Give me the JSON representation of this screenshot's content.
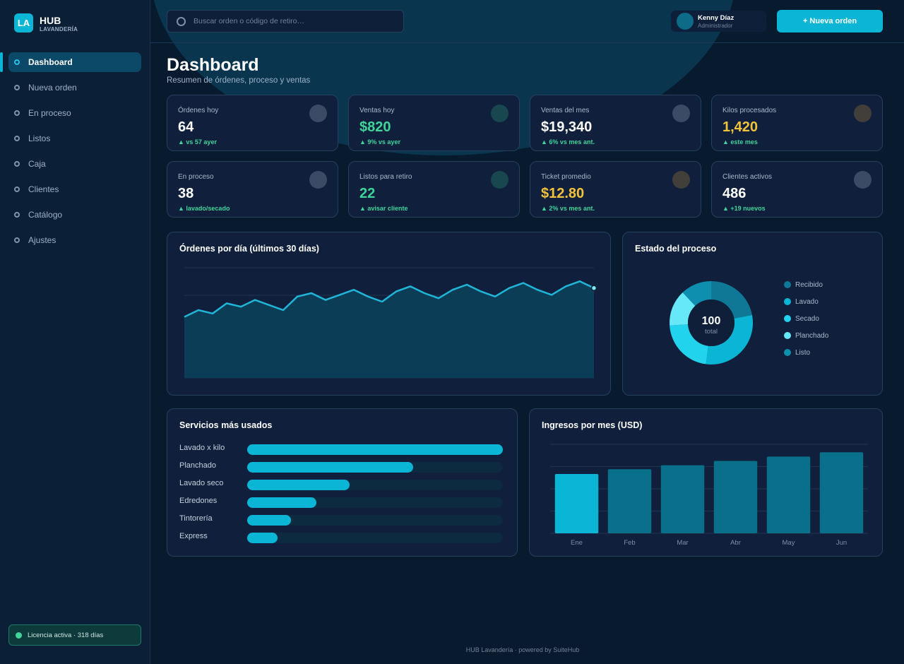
{
  "brand": {
    "logo": "LA",
    "name": "HUB",
    "sub": "LAVANDERÍA"
  },
  "nav": [
    {
      "label": "Dashboard",
      "active": true
    },
    {
      "label": "Nueva orden"
    },
    {
      "label": "En proceso"
    },
    {
      "label": "Listos"
    },
    {
      "label": "Caja"
    },
    {
      "label": "Clientes"
    },
    {
      "label": "Catálogo"
    },
    {
      "label": "Ajustes"
    }
  ],
  "license": "Licencia activa · 318 días",
  "search": {
    "placeholder": "Buscar orden o código de retiro…"
  },
  "user": {
    "name": "Kenny Díaz",
    "role": "Administrador"
  },
  "new_order_label": "+ Nueva orden",
  "page": {
    "title": "Dashboard",
    "subtitle": "Resumen de órdenes, proceso y ventas"
  },
  "kpis": [
    {
      "label": "Órdenes hoy",
      "value": "64",
      "trend": "▲ vs 57 ayer",
      "value_color": "white",
      "icon": "gray"
    },
    {
      "label": "Ventas hoy",
      "value": "$820",
      "trend": "▲ 9% vs ayer",
      "value_color": "green",
      "icon": "teal"
    },
    {
      "label": "Ventas del mes",
      "value": "$19,340",
      "trend": "▲ 6% vs mes ant.",
      "value_color": "white",
      "icon": "gray"
    },
    {
      "label": "Kilos procesados",
      "value": "1,420",
      "trend": "▲ este mes",
      "value_color": "yellow",
      "icon": "brown"
    },
    {
      "label": "En proceso",
      "value": "38",
      "trend": "▲ lavado/secado",
      "value_color": "white",
      "icon": "gray"
    },
    {
      "label": "Listos para retiro",
      "value": "22",
      "trend": "▲ avisar cliente",
      "value_color": "green",
      "icon": "teal"
    },
    {
      "label": "Ticket promedio",
      "value": "$12.80",
      "trend": "▲ 2% vs mes ant.",
      "value_color": "yellow",
      "icon": "brown"
    },
    {
      "label": "Clientes activos",
      "value": "486",
      "trend": "▲ +19 nuevos",
      "value_color": "white",
      "icon": "gray"
    }
  ],
  "chart_data": [
    {
      "type": "area",
      "title": "Órdenes por día (últimos 30 días)",
      "x": [
        1,
        2,
        3,
        4,
        5,
        6,
        7,
        8,
        9,
        10,
        11,
        12,
        13,
        14,
        15,
        16,
        17,
        18,
        19,
        20,
        21,
        22,
        23,
        24,
        25,
        26,
        27,
        28,
        29,
        30
      ],
      "values": [
        36,
        40,
        38,
        44,
        42,
        46,
        43,
        40,
        48,
        50,
        46,
        49,
        52,
        48,
        45,
        51,
        54,
        50,
        47,
        52,
        55,
        51,
        48,
        53,
        56,
        52,
        49,
        54,
        57,
        53
      ],
      "ylim": [
        0,
        65
      ],
      "grid": true,
      "color": "#1fb6d8"
    },
    {
      "type": "pie",
      "title": "Estado del proceso",
      "center_value": "100",
      "center_label": "total",
      "categories": [
        "Recibido",
        "Lavado",
        "Secado",
        "Planchado",
        "Listo"
      ],
      "values": [
        22,
        30,
        22,
        14,
        12
      ],
      "colors": [
        "#0f7896",
        "#0bb5d6",
        "#22d3ee",
        "#67e8f9",
        "#0e8fb0"
      ],
      "legend": "right"
    },
    {
      "type": "bar",
      "orientation": "horizontal",
      "title": "Servicios más usados",
      "categories": [
        "Lavado x kilo",
        "Planchado",
        "Lavado seco",
        "Edredones",
        "Tintorería",
        "Express"
      ],
      "values": [
        100,
        65,
        40,
        27,
        17,
        12
      ],
      "xlim": [
        0,
        100
      ]
    },
    {
      "type": "bar",
      "title": "Ingresos por mes (USD)",
      "categories": [
        "Ene",
        "Feb",
        "Mar",
        "Abr",
        "May",
        "Jun"
      ],
      "values": [
        15000,
        16200,
        17200,
        18300,
        19400,
        20500
      ],
      "ylim": [
        0,
        22500
      ],
      "grid": true,
      "highlight_color": "#0bb5d6",
      "color": "#0a6f8a"
    }
  ],
  "footer": "HUB Lavandería  ·  powered by SuiteHub"
}
